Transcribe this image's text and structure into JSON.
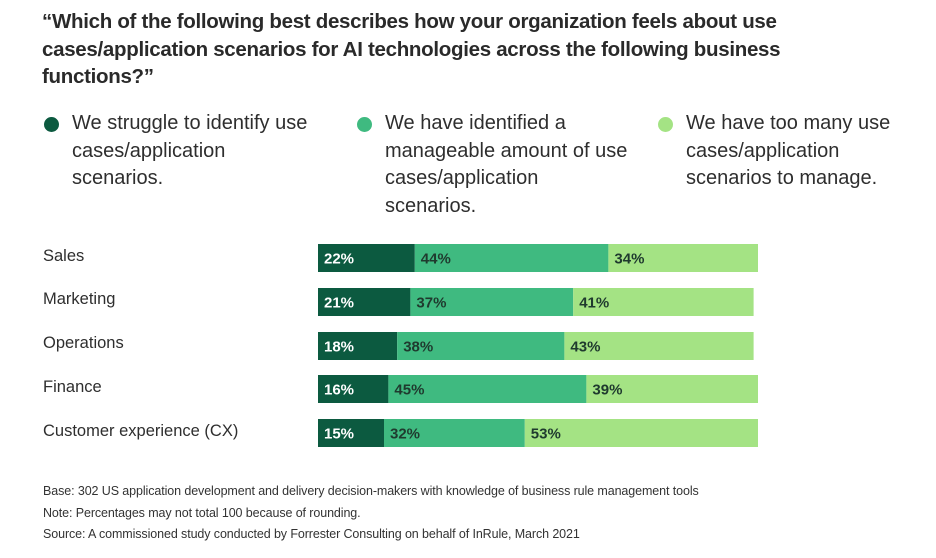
{
  "colors": {
    "struggle": "#0c5a40",
    "manageable": "#3fba80",
    "too_many": "#a4e384",
    "label_on_dark": "#ffffff",
    "label_on_light": "#1f3a2e"
  },
  "chart_data": {
    "type": "bar",
    "orientation": "horizontal",
    "stacked": true,
    "title": "“Which of the following best describes how your organization feels about use cases/application scenarios for AI technologies across the following business functions?”",
    "xlabel": "",
    "ylabel": "",
    "xlim": [
      0,
      100
    ],
    "grid": false,
    "legend_position": "top",
    "categories": [
      "Sales",
      "Marketing",
      "Operations",
      "Finance",
      "Customer experience (CX)"
    ],
    "series": [
      {
        "name": "We struggle to identify use cases/application scenarios.",
        "values": [
          22,
          21,
          18,
          16,
          15
        ],
        "labels": [
          "22%",
          "21%",
          "18%",
          "16%",
          "15%"
        ]
      },
      {
        "name": "We have identified a manageable amount of use cases/application scenarios.",
        "values": [
          44,
          37,
          38,
          45,
          32
        ],
        "labels": [
          "44%",
          "37%",
          "38%",
          "45%",
          "32%"
        ]
      },
      {
        "name": "We have too many use cases/application scenarios to manage.",
        "values": [
          34,
          41,
          43,
          39,
          53
        ],
        "labels": [
          "34%",
          "41%",
          "43%",
          "39%",
          "53%"
        ]
      }
    ]
  },
  "legend": [
    {
      "text": "We struggle to identify use cases/application scenarios."
    },
    {
      "text": "We have identified a manageable amount of use cases/application scenarios."
    },
    {
      "text": "We have too many use cases/application scenarios to manage."
    }
  ],
  "footnotes": {
    "base": "Base: 302 US application development and delivery decision-makers with knowledge of business rule management tools",
    "note": "Note: Percentages may not total 100 because of rounding.",
    "source": "Source: A commissioned study conducted by Forrester Consulting on behalf of InRule, March 2021"
  }
}
